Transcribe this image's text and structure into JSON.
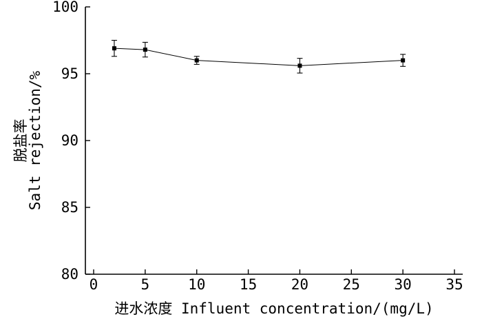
{
  "chart_data": {
    "type": "line",
    "xlabel": "进水浓度 Influent concentration/(mg/L)",
    "ylabel_line1": "脱盐率",
    "ylabel_line2": "Salt rejection/%",
    "xlim": [
      -1,
      35
    ],
    "ylim": [
      80,
      100
    ],
    "xticks": [
      0,
      5,
      10,
      15,
      20,
      25,
      30,
      35
    ],
    "yticks": [
      80,
      85,
      90,
      95,
      100
    ],
    "grid": false,
    "legend": "none",
    "series": [
      {
        "x": [
          2,
          5,
          10,
          20,
          30
        ],
        "y": [
          96.9,
          96.8,
          96.0,
          95.6,
          96.0
        ],
        "error": [
          0.6,
          0.55,
          0.3,
          0.55,
          0.45
        ],
        "marker": "square",
        "color": "#000000"
      }
    ]
  }
}
